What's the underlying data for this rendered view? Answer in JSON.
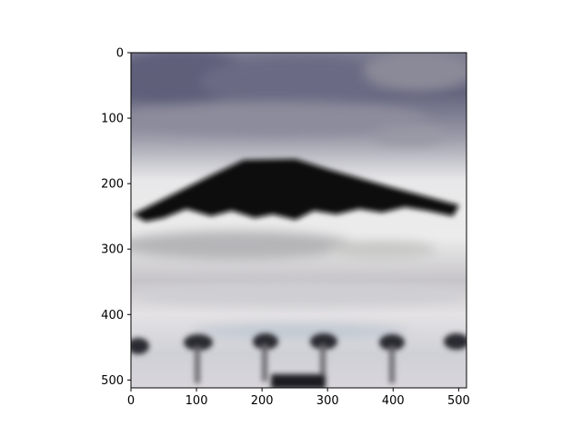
{
  "chart_data": {
    "type": "image",
    "title": "",
    "xlabel": "",
    "ylabel": "",
    "xlim": [
      0,
      512
    ],
    "ylim": [
      512,
      0
    ],
    "x_ticks": [
      0,
      100,
      200,
      300,
      400,
      500
    ],
    "y_ticks": [
      0,
      100,
      200,
      300,
      400,
      500
    ],
    "y_inverted": true,
    "grid": false,
    "legend": "none",
    "image": {
      "description_colors": {
        "sky_top": "#6f6f86",
        "sky_mid": "#c9c7cf",
        "sky_bright": "#eeeeea",
        "object": "#0a0a0a",
        "ground": "#b8b4bc"
      }
    }
  }
}
